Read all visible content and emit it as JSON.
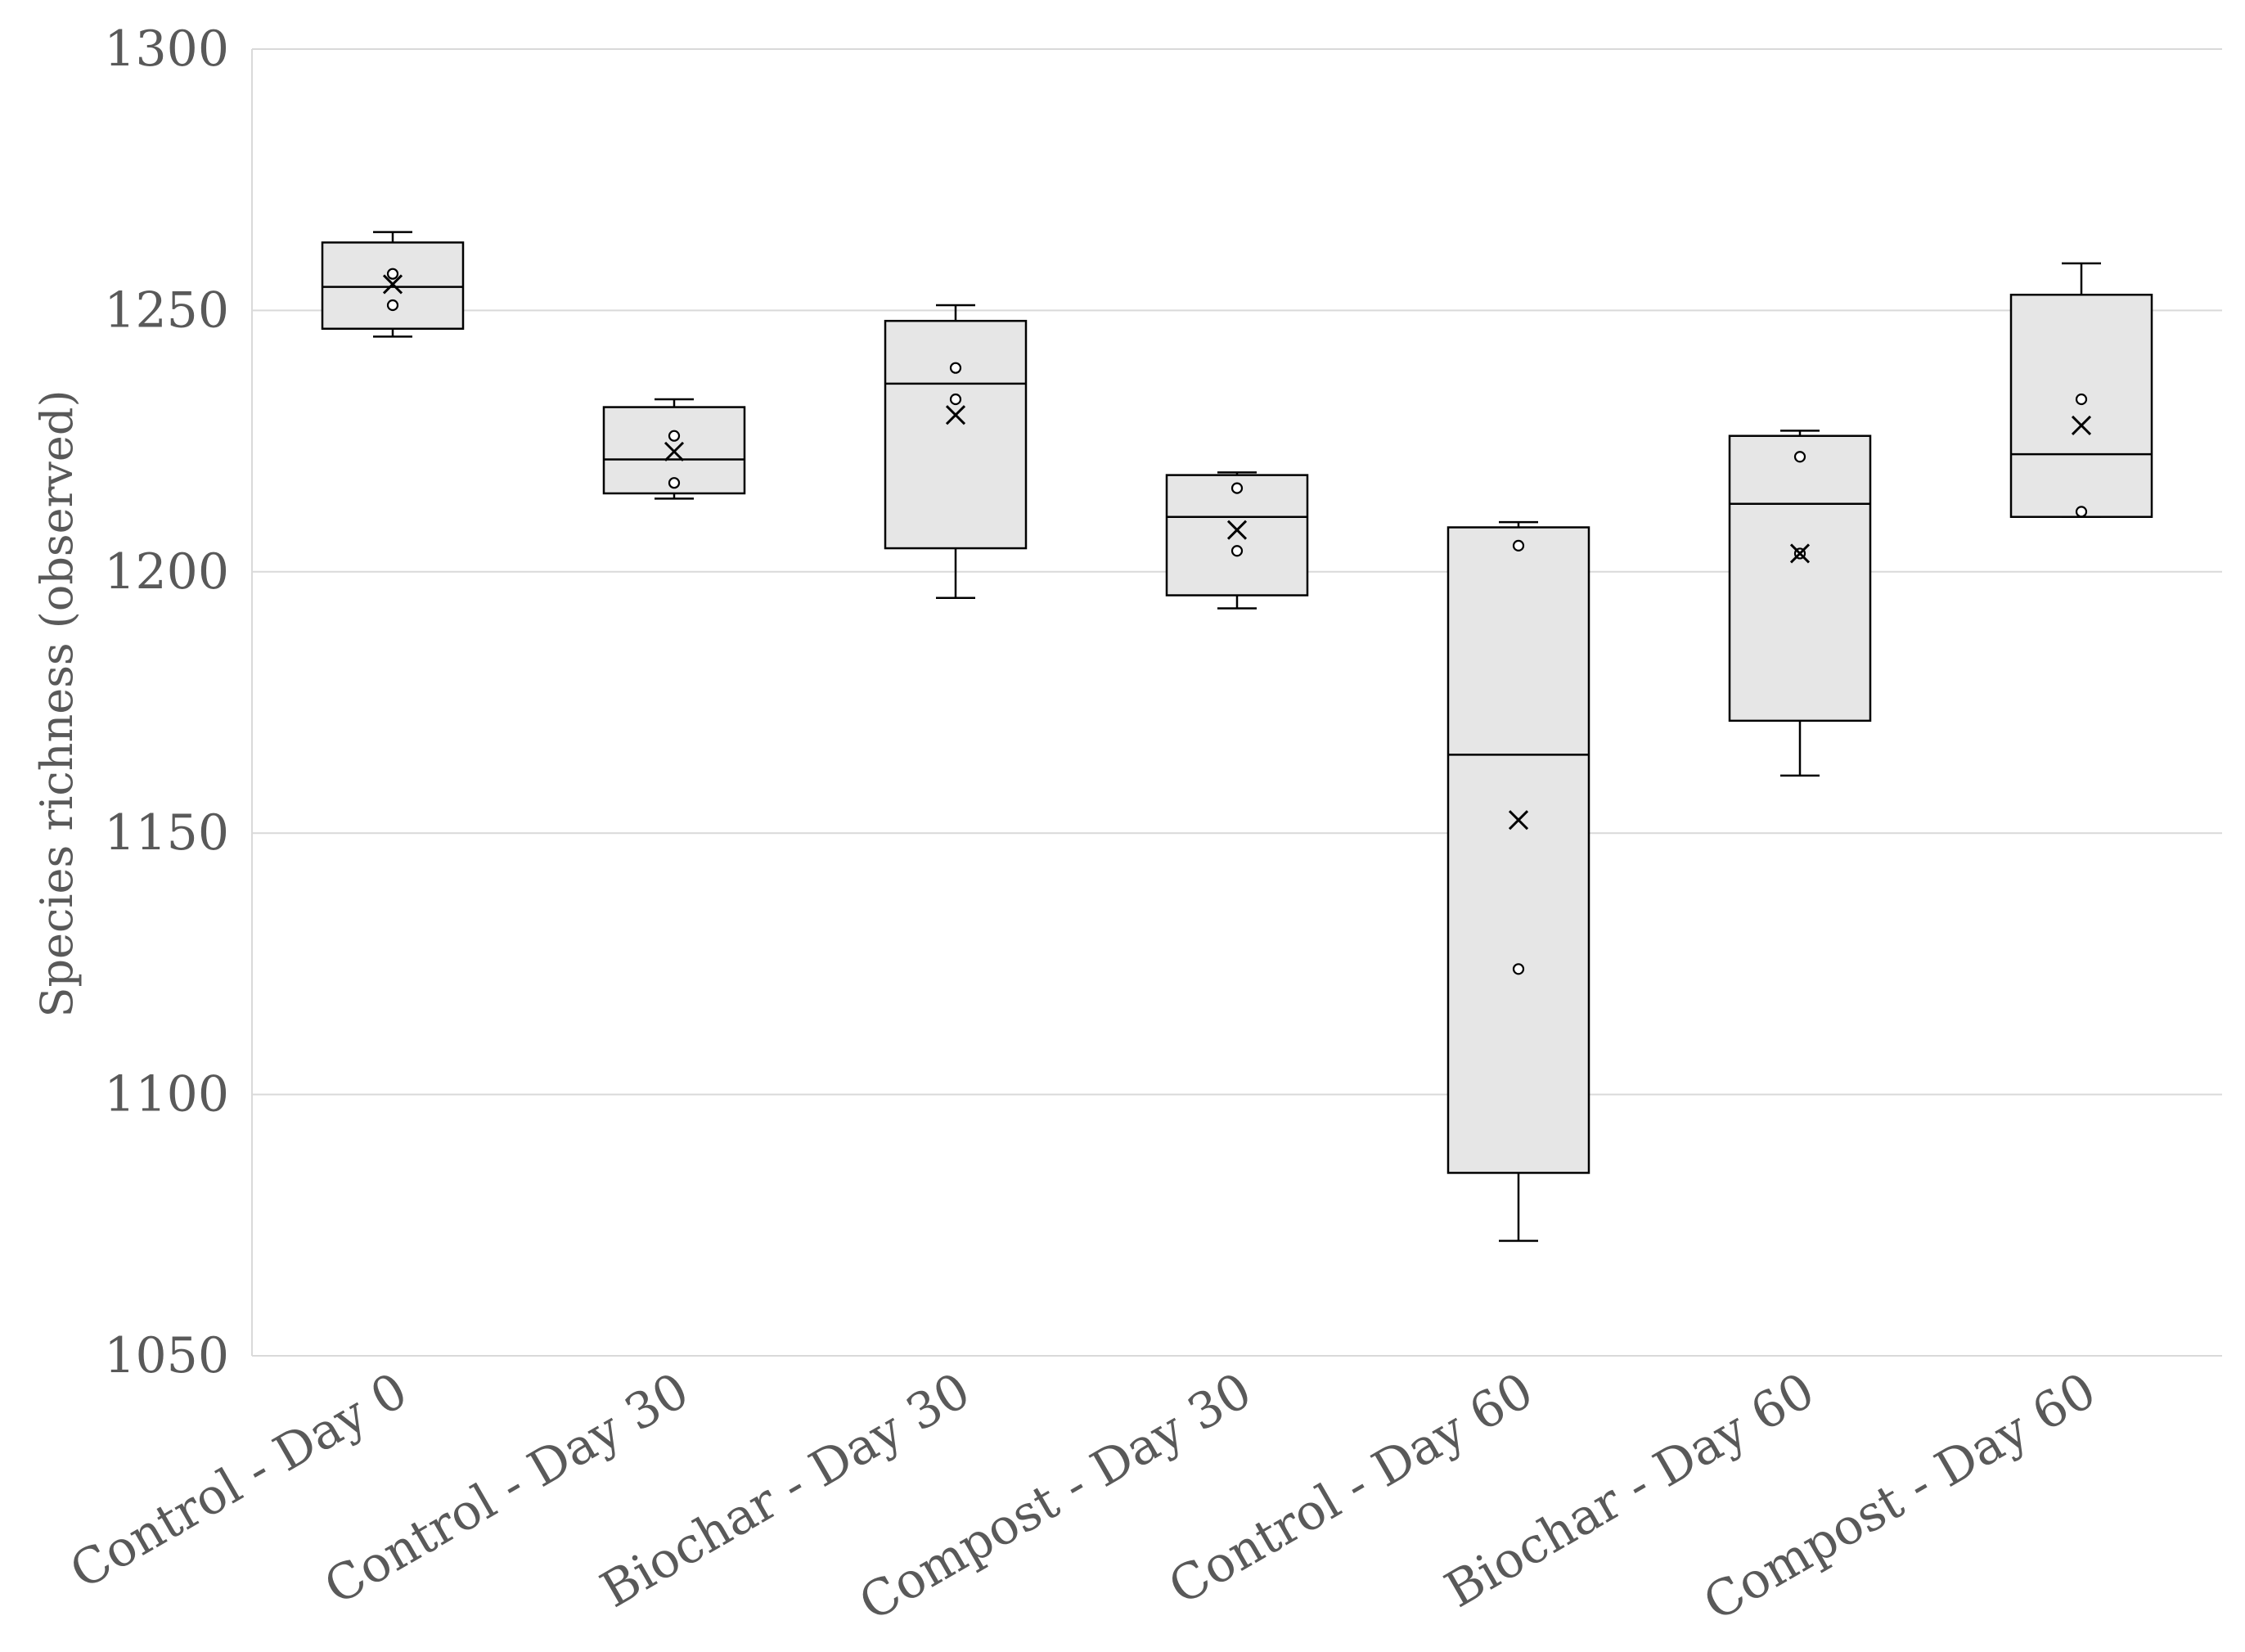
{
  "chart_data": {
    "type": "box",
    "title": "",
    "xlabel": "",
    "ylabel": "Species richness (observed)",
    "ylim": [
      1050,
      1300
    ],
    "yticks": [
      1050,
      1100,
      1150,
      1200,
      1250,
      1300
    ],
    "grid": true,
    "legend": "none",
    "categories": [
      "Control - Day 0",
      "Control - Day 30",
      "Biochar - Day 30",
      "Compost - Day 30",
      "Control - Day 60",
      "Biochar - Day 60",
      "Compost - Day 60"
    ],
    "boxes": [
      {
        "whisker_low": 1245,
        "q1": 1246.5,
        "median": 1254.5,
        "q3": 1263,
        "whisker_high": 1265,
        "mean": 1255,
        "points": [
          1257,
          1251
        ]
      },
      {
        "whisker_low": 1214,
        "q1": 1215,
        "median": 1221.5,
        "q3": 1231.5,
        "whisker_high": 1233,
        "mean": 1223,
        "points": [
          1226,
          1217
        ]
      },
      {
        "whisker_low": 1195,
        "q1": 1204.5,
        "median": 1236,
        "q3": 1248,
        "whisker_high": 1251,
        "mean": 1230,
        "points": [
          1239,
          1233
        ]
      },
      {
        "whisker_low": 1193,
        "q1": 1195.5,
        "median": 1210.5,
        "q3": 1218.5,
        "whisker_high": 1219,
        "mean": 1208,
        "points": [
          1216,
          1204
        ]
      },
      {
        "whisker_low": 1072,
        "q1": 1085,
        "median": 1165,
        "q3": 1208.5,
        "whisker_high": 1209.5,
        "mean": 1152.5,
        "points": [
          1205,
          1124
        ]
      },
      {
        "whisker_low": 1161,
        "q1": 1171.5,
        "median": 1213,
        "q3": 1226,
        "whisker_high": 1227,
        "mean": 1203.5,
        "points": [
          1222,
          1203.5
        ]
      },
      {
        "whisker_low": 1210.5,
        "q1": 1210.5,
        "median": 1222.5,
        "q3": 1253,
        "whisker_high": 1259,
        "mean": 1228,
        "points": [
          1233,
          1211.5
        ]
      }
    ],
    "colors": {
      "box_fill": "#e6e6e6",
      "stroke": "#000000",
      "grid": "#d9d9d9",
      "text": "#595959"
    }
  }
}
